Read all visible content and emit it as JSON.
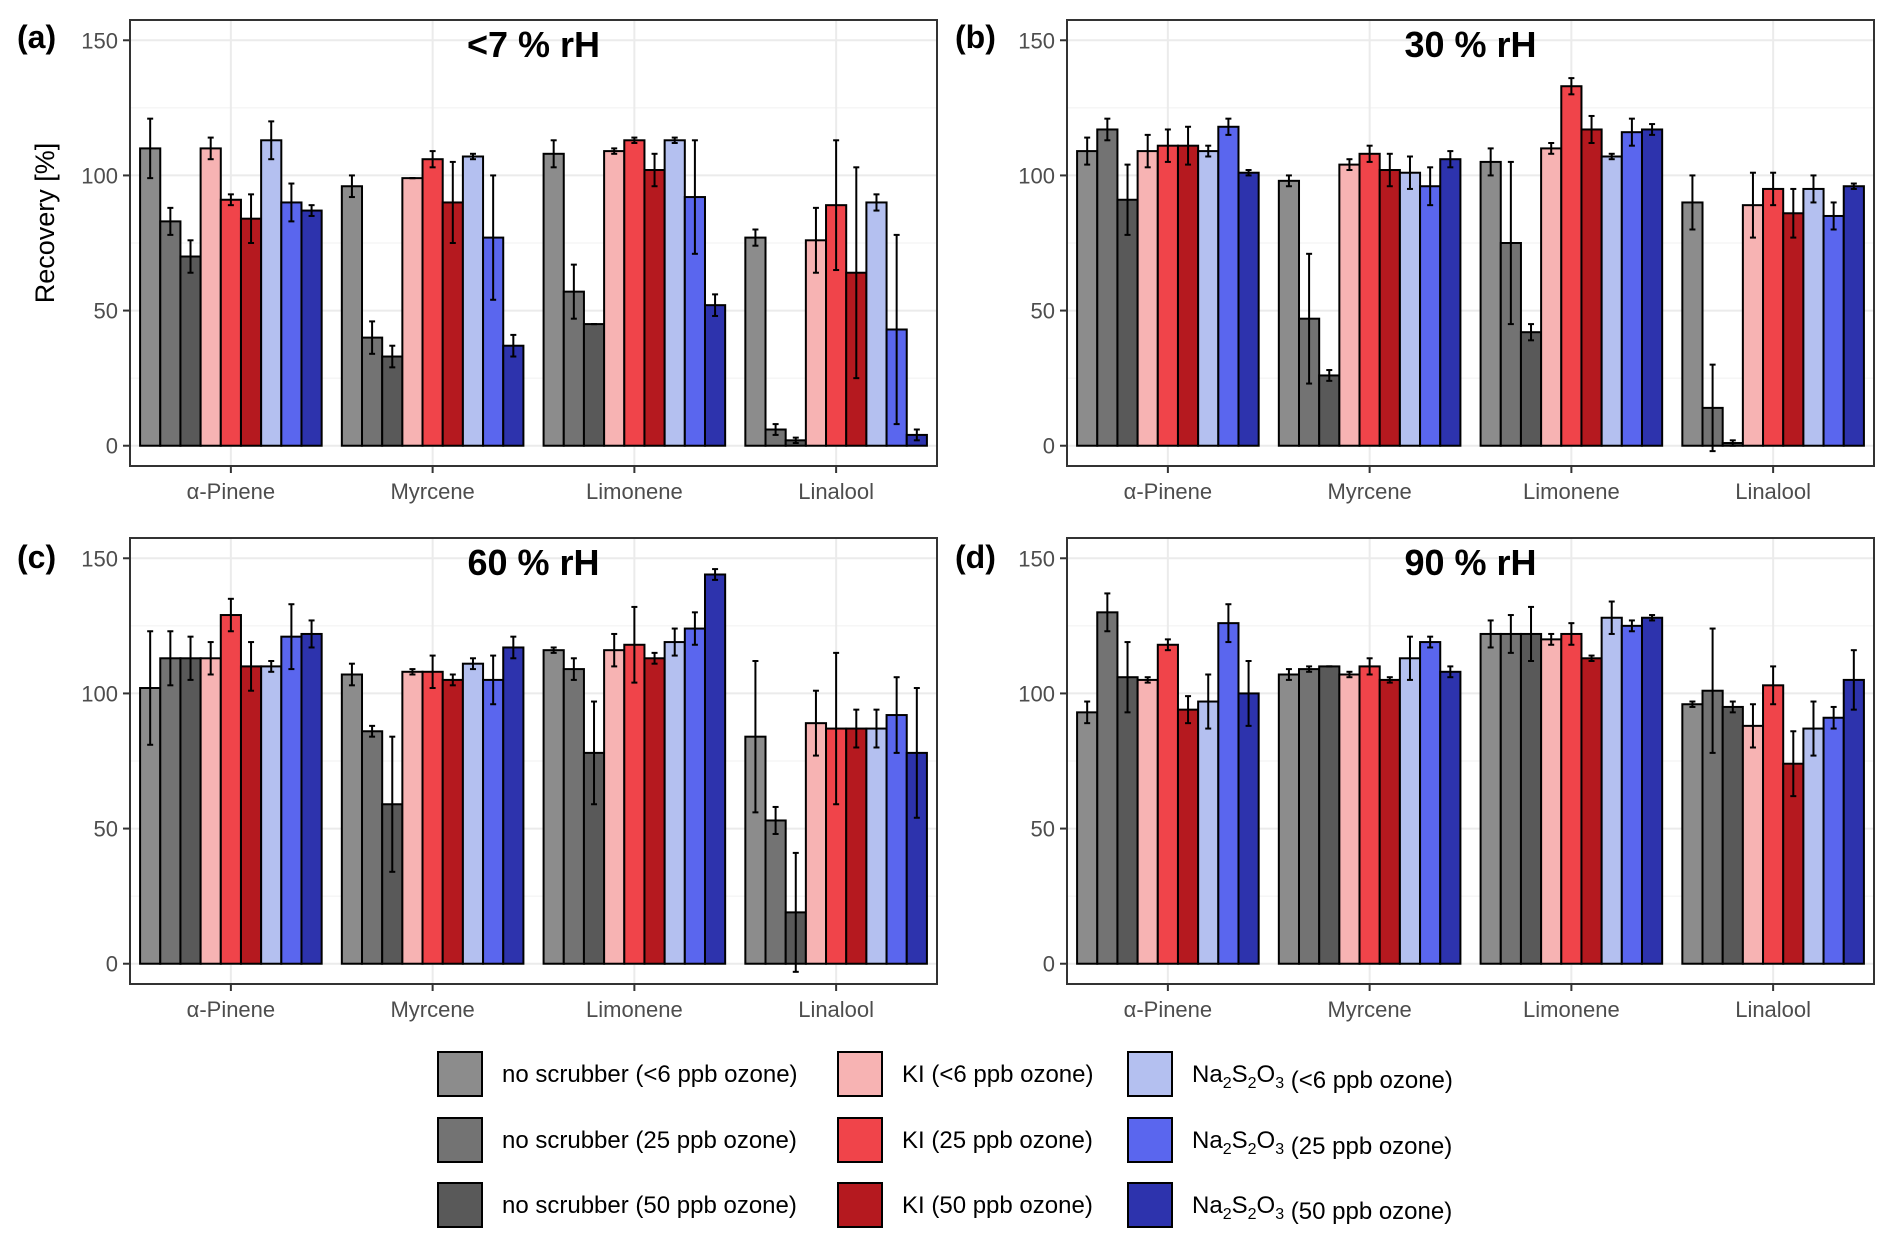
{
  "chart_data": {
    "type": "bar",
    "ylabel": "Recovery [%]",
    "ylim": [
      -7.5,
      157.5
    ],
    "yticks": [
      0,
      50,
      100,
      150
    ],
    "categories": [
      "α-Pinene",
      "Myrcene",
      "Limonene",
      "Linalool"
    ],
    "series": [
      {
        "name": "no scrubber (<6 ppb ozone)",
        "color": "#8c8c8c"
      },
      {
        "name": "no scrubber (25 ppb ozone)",
        "color": "#737373"
      },
      {
        "name": "no scrubber (50 ppb ozone)",
        "color": "#595959"
      },
      {
        "name": "KI (<6 ppb ozone)",
        "color": "#f7b3b3"
      },
      {
        "name": "KI (25 ppb ozone)",
        "color": "#f0444a"
      },
      {
        "name": "KI (50 ppb ozone)",
        "color": "#b5191f"
      },
      {
        "name": "Na2S2O3 (<6 ppb ozone)",
        "color": "#b4c0f0"
      },
      {
        "name": "Na2S2O3 (25 ppb ozone)",
        "color": "#5a66ee"
      },
      {
        "name": "Na2S2O3 (50 ppb ozone)",
        "color": "#2d33ad"
      }
    ],
    "panels": [
      {
        "letter": "(a)",
        "title": "<7 % rH",
        "values": [
          [
            110,
            83,
            70,
            110,
            91,
            84,
            113,
            90,
            87
          ],
          [
            96,
            40,
            33,
            99,
            106,
            90,
            107,
            77,
            37
          ],
          [
            108,
            57,
            45,
            109,
            113,
            102,
            113,
            92,
            52
          ],
          [
            77,
            6,
            2,
            76,
            89,
            64,
            90,
            43,
            4
          ]
        ],
        "errors": [
          [
            11,
            5,
            6,
            4,
            2,
            9,
            7,
            7,
            2
          ],
          [
            4,
            6,
            4,
            0,
            3,
            15,
            1,
            23,
            4
          ],
          [
            5,
            10,
            0,
            1,
            1,
            6,
            1,
            21,
            4
          ],
          [
            3,
            2,
            1,
            12,
            24,
            39,
            3,
            35,
            2
          ]
        ]
      },
      {
        "letter": "(b)",
        "title": "30 % rH",
        "values": [
          [
            109,
            117,
            91,
            109,
            111,
            111,
            109,
            118,
            101
          ],
          [
            98,
            47,
            26,
            104,
            108,
            102,
            101,
            96,
            106
          ],
          [
            105,
            75,
            42,
            110,
            133,
            117,
            107,
            116,
            117
          ],
          [
            90,
            14,
            1,
            89,
            95,
            86,
            95,
            85,
            96
          ]
        ],
        "errors": [
          [
            5,
            4,
            13,
            6,
            6,
            7,
            2,
            3,
            1
          ],
          [
            2,
            24,
            2,
            2,
            3,
            6,
            6,
            7,
            3
          ],
          [
            5,
            30,
            3,
            2,
            3,
            5,
            1,
            5,
            2
          ],
          [
            10,
            16,
            1,
            12,
            6,
            9,
            5,
            5,
            1
          ]
        ]
      },
      {
        "letter": "(c)",
        "title": "60 % rH",
        "values": [
          [
            102,
            113,
            113,
            113,
            129,
            110,
            110,
            121,
            122
          ],
          [
            107,
            86,
            59,
            108,
            108,
            105,
            111,
            105,
            117
          ],
          [
            116,
            109,
            78,
            116,
            118,
            113,
            119,
            124,
            144
          ],
          [
            84,
            53,
            19,
            89,
            87,
            87,
            87,
            92,
            78
          ]
        ],
        "errors": [
          [
            21,
            10,
            8,
            6,
            6,
            9,
            2,
            12,
            5
          ],
          [
            4,
            2,
            25,
            1,
            6,
            2,
            2,
            9,
            4
          ],
          [
            1,
            4,
            19,
            6,
            14,
            2,
            5,
            6,
            2
          ],
          [
            28,
            5,
            22,
            12,
            28,
            7,
            7,
            14,
            24
          ]
        ]
      },
      {
        "letter": "(d)",
        "title": "90 % rH",
        "values": [
          [
            93,
            130,
            106,
            105,
            118,
            94,
            97,
            126,
            100
          ],
          [
            107,
            109,
            110,
            107,
            110,
            105,
            113,
            119,
            108
          ],
          [
            122,
            122,
            122,
            120,
            122,
            113,
            128,
            125,
            128
          ],
          [
            96,
            101,
            95,
            88,
            103,
            74,
            87,
            91,
            105
          ]
        ],
        "errors": [
          [
            4,
            7,
            13,
            1,
            2,
            5,
            10,
            7,
            12
          ],
          [
            2,
            1,
            0,
            1,
            3,
            1,
            8,
            2,
            2
          ],
          [
            5,
            7,
            10,
            2,
            4,
            1,
            6,
            2,
            1
          ],
          [
            1,
            23,
            2,
            8,
            7,
            12,
            10,
            4,
            11
          ]
        ]
      }
    ]
  },
  "legend": [
    {
      "prefix": "no scrubber",
      "rest": " (<6 ppb ozone)",
      "chem": false
    },
    {
      "prefix": "no scrubber",
      "rest": " (25 ppb ozone)",
      "chem": false
    },
    {
      "prefix": "no scrubber",
      "rest": " (50 ppb ozone)",
      "chem": false
    },
    {
      "prefix": "KI",
      "rest": " (<6 ppb ozone)",
      "chem": false
    },
    {
      "prefix": "KI",
      "rest": " (25 ppb ozone)",
      "chem": false
    },
    {
      "prefix": "KI",
      "rest": " (50 ppb ozone)",
      "chem": false
    },
    {
      "prefix": "Na2S2O3",
      "rest": " (<6 ppb ozone)",
      "chem": true
    },
    {
      "prefix": "Na2S2O3",
      "rest": " (25 ppb ozone)",
      "chem": true
    },
    {
      "prefix": "Na2S2O3",
      "rest": " (50 ppb ozone)",
      "chem": true
    }
  ]
}
